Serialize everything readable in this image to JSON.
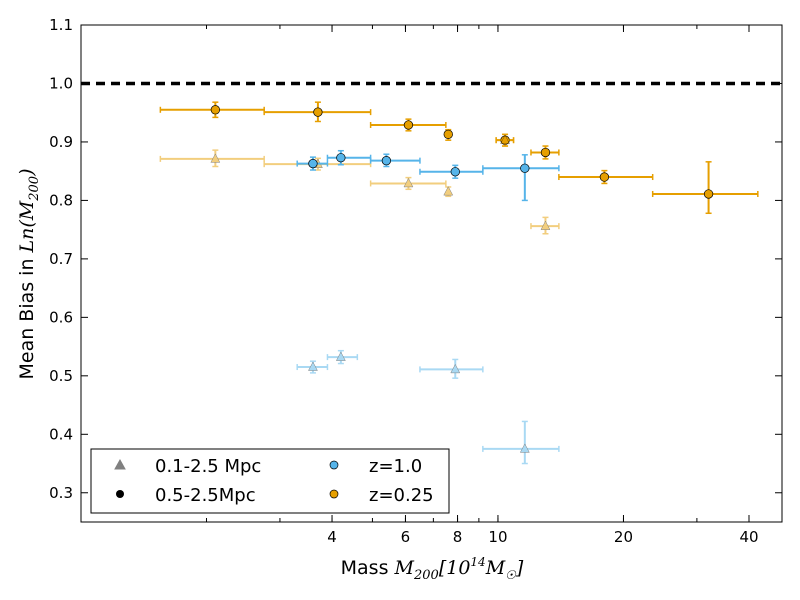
{
  "chart_data": {
    "type": "scatter",
    "xscale": "log",
    "xlim": [
      1.0,
      48
    ],
    "ylim": [
      0.25,
      1.1
    ],
    "xticks": [
      4,
      6,
      8,
      10,
      20,
      40
    ],
    "xtick_labels": [
      "4",
      "6",
      "8",
      "10",
      "20",
      "40"
    ],
    "yticks": [
      0.3,
      0.4,
      0.5,
      0.6,
      0.7,
      0.8,
      0.9,
      1.0,
      1.1
    ],
    "ytick_labels": [
      "0.3",
      "0.4",
      "0.5",
      "0.6",
      "0.7",
      "0.8",
      "0.9",
      "1.0",
      "1.1"
    ],
    "xlabel": {
      "prefix": "Mass ",
      "math": "M",
      "sub": "200",
      "bracket_open": "[10",
      "sup": "14",
      "math2": "M",
      "sub2": "☉",
      "bracket_close": "]"
    },
    "ylabel": {
      "prefix": "Mean Bias in ",
      "math": "Ln(M",
      "sub": "200",
      "close": ")"
    },
    "reference_line": {
      "y": 1.0,
      "style": "dashed",
      "color": "#000000"
    },
    "legend": {
      "placement": "lower-left",
      "entries": [
        {
          "label": "0.1-2.5 Mpc",
          "marker": "triangle",
          "color": "#808080"
        },
        {
          "label": "z=1.0",
          "marker": "circle",
          "color": "#56B4E9"
        },
        {
          "label": "0.5-2.5Mpc",
          "marker": "circle",
          "color": "#000000"
        },
        {
          "label": "z=0.25",
          "marker": "circle",
          "color": "#E69F00"
        }
      ]
    },
    "series": [
      {
        "aperture": "0.5-2.5Mpc",
        "redshift": "z=0.25",
        "marker": "circle",
        "color": "#E69F00",
        "alpha": 1.0,
        "points": [
          {
            "x": 2.1,
            "xlo": 1.55,
            "xhi": 2.75,
            "y": 0.955,
            "ylo": 0.942,
            "yhi": 0.968
          },
          {
            "x": 3.7,
            "xlo": 2.75,
            "xhi": 4.95,
            "y": 0.951,
            "ylo": 0.935,
            "yhi": 0.968
          },
          {
            "x": 6.1,
            "xlo": 4.95,
            "xhi": 7.5,
            "y": 0.929,
            "ylo": 0.919,
            "yhi": 0.939
          },
          {
            "x": 7.6,
            "xlo": 7.6,
            "xhi": 7.6,
            "y": 0.913,
            "ylo": 0.903,
            "yhi": 0.921
          },
          {
            "x": 10.4,
            "xlo": 9.9,
            "xhi": 10.9,
            "y": 0.903,
            "ylo": 0.893,
            "yhi": 0.913
          },
          {
            "x": 13.0,
            "xlo": 12.0,
            "xhi": 14.0,
            "y": 0.882,
            "ylo": 0.871,
            "yhi": 0.893
          },
          {
            "x": 18.0,
            "xlo": 14.0,
            "xhi": 23.5,
            "y": 0.84,
            "ylo": 0.829,
            "yhi": 0.851
          },
          {
            "x": 32.0,
            "xlo": 23.5,
            "xhi": 42.0,
            "y": 0.811,
            "ylo": 0.778,
            "yhi": 0.866
          }
        ]
      },
      {
        "aperture": "0.1-2.5 Mpc",
        "redshift": "z=0.25",
        "marker": "triangle",
        "color": "#E69F00",
        "alpha": 0.5,
        "points": [
          {
            "x": 2.1,
            "xlo": 1.55,
            "xhi": 2.75,
            "y": 0.871,
            "ylo": 0.858,
            "yhi": 0.886
          },
          {
            "x": 3.7,
            "xlo": 2.75,
            "xhi": 4.95,
            "y": 0.862,
            "ylo": 0.852,
            "yhi": 0.872
          },
          {
            "x": 6.1,
            "xlo": 4.95,
            "xhi": 7.5,
            "y": 0.829,
            "ylo": 0.819,
            "yhi": 0.839
          },
          {
            "x": 7.6,
            "xlo": 7.6,
            "xhi": 7.6,
            "y": 0.815,
            "ylo": 0.807,
            "yhi": 0.823
          },
          {
            "x": 10.4,
            "xlo": 9.9,
            "xhi": 10.9,
            "y": 0.903,
            "ylo": 0.893,
            "yhi": 0.913
          },
          {
            "x": 13.0,
            "xlo": 12.0,
            "xhi": 14.0,
            "y": 0.756,
            "ylo": 0.743,
            "yhi": 0.771
          }
        ]
      },
      {
        "aperture": "0.5-2.5Mpc",
        "redshift": "z=1.0",
        "marker": "circle",
        "color": "#56B4E9",
        "alpha": 1.0,
        "points": [
          {
            "x": 3.6,
            "xlo": 3.3,
            "xhi": 3.9,
            "y": 0.863,
            "ylo": 0.852,
            "yhi": 0.874
          },
          {
            "x": 4.2,
            "xlo": 3.9,
            "xhi": 4.95,
            "y": 0.873,
            "ylo": 0.861,
            "yhi": 0.885
          },
          {
            "x": 5.4,
            "xlo": 4.95,
            "xhi": 6.5,
            "y": 0.868,
            "ylo": 0.858,
            "yhi": 0.879
          },
          {
            "x": 7.9,
            "xlo": 6.5,
            "xhi": 9.2,
            "y": 0.849,
            "ylo": 0.838,
            "yhi": 0.86
          },
          {
            "x": 11.6,
            "xlo": 9.2,
            "xhi": 14.0,
            "y": 0.855,
            "ylo": 0.8,
            "yhi": 0.878
          }
        ]
      },
      {
        "aperture": "0.1-2.5 Mpc",
        "redshift": "z=1.0",
        "marker": "triangle",
        "color": "#56B4E9",
        "alpha": 0.5,
        "points": [
          {
            "x": 3.6,
            "xlo": 3.3,
            "xhi": 3.9,
            "y": 0.515,
            "ylo": 0.505,
            "yhi": 0.525
          },
          {
            "x": 4.2,
            "xlo": 3.9,
            "xhi": 4.6,
            "y": 0.532,
            "ylo": 0.521,
            "yhi": 0.543
          },
          {
            "x": 7.9,
            "xlo": 6.5,
            "xhi": 9.2,
            "y": 0.511,
            "ylo": 0.496,
            "yhi": 0.528
          },
          {
            "x": 11.6,
            "xlo": 9.2,
            "xhi": 14.0,
            "y": 0.375,
            "ylo": 0.35,
            "yhi": 0.422
          }
        ]
      }
    ]
  }
}
